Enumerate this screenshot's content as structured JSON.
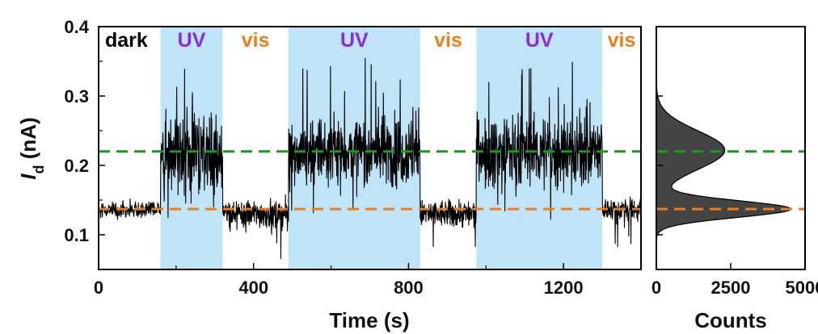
{
  "chart_data": [
    {
      "type": "line",
      "xlabel": "Time (s)",
      "ylabel_main": "I",
      "ylabel_sub": "d",
      "ylabel_unit": " (nA)",
      "xlim": [
        0,
        1400
      ],
      "ylim": [
        0.05,
        0.4
      ],
      "xticks": [
        0,
        400,
        800,
        1200
      ],
      "xtick_labels": [
        "0",
        "400",
        "800",
        "1200"
      ],
      "yticks": [
        0.1,
        0.2,
        0.3,
        0.4
      ],
      "ytick_labels": [
        "0.1",
        "0.2",
        "0.3",
        "0.4"
      ],
      "uv_shade_color": "#bfe3f7",
      "trace_color": "#000000",
      "regions": [
        {
          "label": "dark",
          "start": 0,
          "end": 160,
          "type": "dark",
          "mean": 0.136,
          "noise": 0.006,
          "color": "#000000"
        },
        {
          "label": "UV",
          "start": 160,
          "end": 320,
          "type": "uv",
          "mean": 0.218,
          "noise": 0.03,
          "color": "#8a2be2"
        },
        {
          "label": "vis",
          "start": 320,
          "end": 490,
          "type": "vis",
          "mean": 0.13,
          "noise": 0.01,
          "color": "#f07d1a"
        },
        {
          "label": "UV",
          "start": 490,
          "end": 830,
          "type": "uv",
          "mean": 0.22,
          "noise": 0.025,
          "color": "#8a2be2"
        },
        {
          "label": "vis",
          "start": 830,
          "end": 975,
          "type": "vis",
          "mean": 0.13,
          "noise": 0.01,
          "color": "#f07d1a"
        },
        {
          "label": "UV",
          "start": 975,
          "end": 1300,
          "type": "uv",
          "mean": 0.22,
          "noise": 0.025,
          "color": "#8a2be2"
        },
        {
          "label": "vis",
          "start": 1300,
          "end": 1400,
          "type": "vis",
          "mean": 0.137,
          "noise": 0.008,
          "color": "#f07d1a"
        }
      ],
      "reference_lines": [
        {
          "y": 0.22,
          "color": "#1a9a1a",
          "style": "dashed"
        },
        {
          "y": 0.137,
          "color": "#f07d1a",
          "style": "dashed"
        }
      ]
    },
    {
      "type": "area",
      "xlabel": "Counts",
      "xlim": [
        0,
        5000
      ],
      "ylim": [
        0.05,
        0.4
      ],
      "xticks": [
        0,
        2500,
        5000
      ],
      "xtick_labels": [
        "0",
        "2500",
        "5000"
      ],
      "fill_color": "#444444",
      "peaks": [
        {
          "center": 0.137,
          "height": 4500,
          "width": 0.012
        },
        {
          "center": 0.222,
          "height": 2300,
          "width": 0.028
        }
      ],
      "reference_lines": [
        {
          "y": 0.22,
          "color": "#1a9a1a",
          "style": "dashed"
        },
        {
          "y": 0.137,
          "color": "#f07d1a",
          "style": "dashed"
        }
      ]
    }
  ]
}
